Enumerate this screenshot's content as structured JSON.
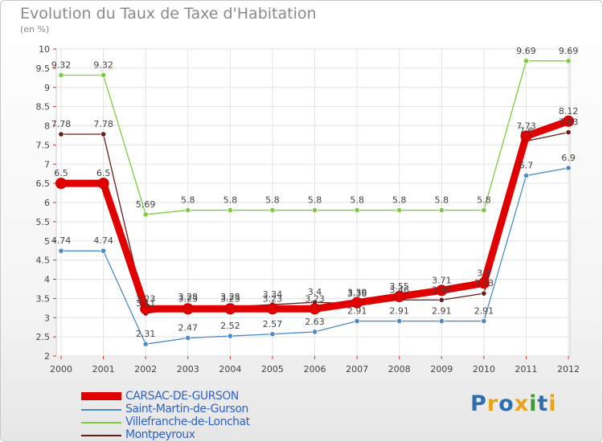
{
  "header": {
    "title": "Evolution du Taux de Taxe d'Habitation",
    "subtitle": "(en %)"
  },
  "brand": {
    "letters": [
      "P",
      "r",
      "o",
      "x",
      "i",
      "t",
      "i"
    ],
    "colors": [
      "#2f6fb0",
      "#e8a317",
      "#2f6fb0",
      "#e8a317",
      "#3d9b35",
      "#2f6fb0",
      "#e8a317"
    ]
  },
  "chart_data": {
    "type": "line",
    "x": [
      "2000",
      "2001",
      "2002",
      "2003",
      "2004",
      "2005",
      "2006",
      "2007",
      "2008",
      "2009",
      "2010",
      "2011",
      "2012"
    ],
    "ylim": [
      2,
      10
    ],
    "yticks": [
      "2",
      "2.5",
      "3",
      "3.5",
      "4",
      "4.5",
      "5",
      "5.5",
      "6",
      "6.5",
      "7",
      "7.5",
      "8",
      "8.5",
      "9",
      "9.5",
      "10"
    ],
    "grid": true,
    "legend_position": "bottom-left",
    "series": [
      {
        "name": "CARSAC-DE-GURSON",
        "color": "#e00000",
        "values": [
          6.5,
          6.5,
          3.23,
          3.23,
          3.23,
          3.23,
          3.23,
          3.39,
          3.55,
          3.71,
          3.9,
          7.73,
          8.12
        ],
        "labels": [
          "6.5",
          "6.5",
          "3.23",
          "3.23",
          "3.23",
          "3.23",
          "3.23",
          "3.39",
          "3.55",
          "3.71",
          "3.9",
          "7.73",
          "8.12"
        ]
      },
      {
        "name": "Saint-Martin-de-Gurson",
        "color": "#4a8cc7",
        "values": [
          4.74,
          4.74,
          2.31,
          2.47,
          2.52,
          2.57,
          2.63,
          2.91,
          2.91,
          2.91,
          2.91,
          6.7,
          6.9
        ],
        "labels": [
          "4.74",
          "4.74",
          "2.31",
          "2.47",
          "2.52",
          "2.57",
          "2.63",
          "2.91",
          "2.91",
          "2.91",
          "2.91",
          "6.7",
          "6.9"
        ]
      },
      {
        "name": "Villefranche-de-Lonchat",
        "color": "#7ccd3c",
        "values": [
          9.32,
          9.32,
          5.69,
          5.8,
          5.8,
          5.8,
          5.8,
          5.8,
          5.8,
          5.8,
          5.8,
          9.69,
          9.69
        ],
        "labels": [
          "9.32",
          "9.32",
          "5.69",
          "5.8",
          "5.8",
          "5.8",
          "5.8",
          "5.8",
          "5.8",
          "5.8",
          "5.8",
          "9.69",
          "9.69"
        ]
      },
      {
        "name": "Montpeyroux",
        "color": "#6b1a1a",
        "values": [
          7.78,
          7.78,
          3.11,
          3.28,
          3.28,
          3.34,
          3.4,
          3.36,
          3.46,
          3.46,
          3.63,
          7.6,
          7.83
        ],
        "labels": [
          "7.78",
          "7.78",
          "3.11",
          "3.28",
          "3.28",
          "3.34",
          "3.4",
          "3.36",
          "3.46",
          "3.46",
          "3.63",
          "7.6",
          "7.83"
        ]
      }
    ]
  }
}
